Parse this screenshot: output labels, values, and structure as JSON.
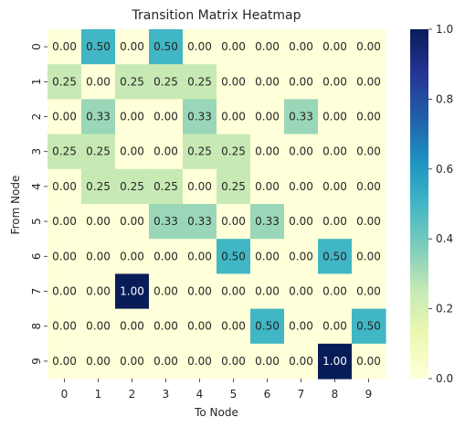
{
  "chart_data": {
    "type": "heatmap",
    "title": "Transition Matrix Heatmap",
    "xlabel": "To Node",
    "ylabel": "From Node",
    "x_categories": [
      "0",
      "1",
      "2",
      "3",
      "4",
      "5",
      "6",
      "7",
      "8",
      "9"
    ],
    "y_categories": [
      "0",
      "1",
      "2",
      "3",
      "4",
      "5",
      "6",
      "7",
      "8",
      "9"
    ],
    "values": [
      [
        0.0,
        0.5,
        0.0,
        0.5,
        0.0,
        0.0,
        0.0,
        0.0,
        0.0,
        0.0
      ],
      [
        0.25,
        0.0,
        0.25,
        0.25,
        0.25,
        0.0,
        0.0,
        0.0,
        0.0,
        0.0
      ],
      [
        0.0,
        0.33,
        0.0,
        0.0,
        0.33,
        0.0,
        0.0,
        0.33,
        0.0,
        0.0
      ],
      [
        0.25,
        0.25,
        0.0,
        0.0,
        0.25,
        0.25,
        0.0,
        0.0,
        0.0,
        0.0
      ],
      [
        0.0,
        0.25,
        0.25,
        0.25,
        0.0,
        0.25,
        0.0,
        0.0,
        0.0,
        0.0
      ],
      [
        0.0,
        0.0,
        0.0,
        0.33,
        0.33,
        0.0,
        0.33,
        0.0,
        0.0,
        0.0
      ],
      [
        0.0,
        0.0,
        0.0,
        0.0,
        0.0,
        0.5,
        0.0,
        0.0,
        0.5,
        0.0
      ],
      [
        0.0,
        0.0,
        1.0,
        0.0,
        0.0,
        0.0,
        0.0,
        0.0,
        0.0,
        0.0
      ],
      [
        0.0,
        0.0,
        0.0,
        0.0,
        0.0,
        0.0,
        0.5,
        0.0,
        0.0,
        0.5
      ],
      [
        0.0,
        0.0,
        0.0,
        0.0,
        0.0,
        0.0,
        0.0,
        0.0,
        1.0,
        0.0
      ]
    ],
    "value_range": [
      0,
      1
    ],
    "colormap": "YlGnBu",
    "colorbar_ticks": [
      "0.0",
      "0.2",
      "0.4",
      "0.6",
      "0.8",
      "1.0"
    ],
    "annotation_format": "0.00",
    "grid": false
  }
}
